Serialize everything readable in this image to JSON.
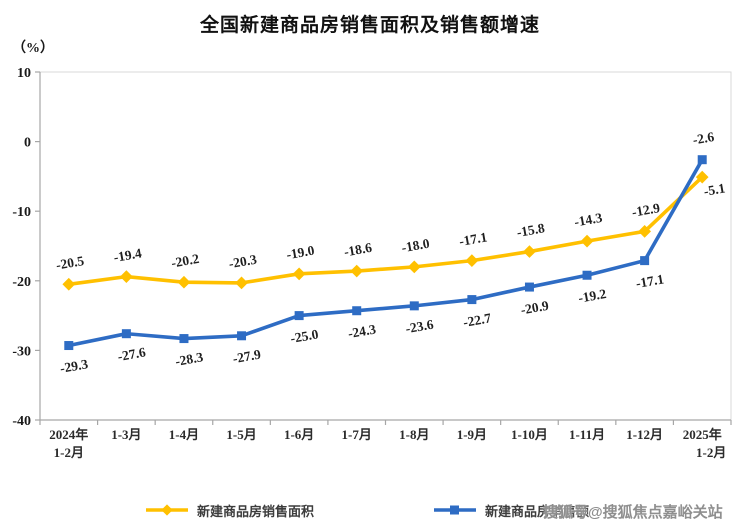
{
  "chart_data": {
    "type": "line",
    "title": "全国新建商品房销售面积及销售额增速",
    "unit_label": "（%）",
    "categories": [
      [
        "2024年",
        "1-2月"
      ],
      [
        "1-3月"
      ],
      [
        "1-4月"
      ],
      [
        "1-5月"
      ],
      [
        "1-6月"
      ],
      [
        "1-7月"
      ],
      [
        "1-8月"
      ],
      [
        "1-9月"
      ],
      [
        "1-10月"
      ],
      [
        "1-11月"
      ],
      [
        "1-12月"
      ],
      [
        "2025年",
        "1-2月"
      ]
    ],
    "series": [
      {
        "name": "新建商品房销售面积",
        "color": "#FFC000",
        "marker": "diamond",
        "values": [
          -20.5,
          -19.4,
          -20.2,
          -20.3,
          -19.0,
          -18.6,
          -18.0,
          -17.1,
          -15.8,
          -14.3,
          -12.9,
          -5.1
        ],
        "labels_placement": "above",
        "last_label_placement": "below-right"
      },
      {
        "name": "新建商品房销售额",
        "color": "#2E6CC4",
        "marker": "square",
        "values": [
          -29.3,
          -27.6,
          -28.3,
          -27.9,
          -25.0,
          -24.3,
          -23.6,
          -22.7,
          -20.9,
          -19.2,
          -17.1,
          -2.6
        ],
        "labels_placement": "below",
        "last_label_placement": "above"
      }
    ],
    "ylim": [
      -40,
      10
    ],
    "yticks": [
      10,
      0,
      -10,
      -20,
      -30,
      -40
    ],
    "grid": false,
    "legend_position": "bottom",
    "data_label_rotation_deg": -10
  },
  "watermark": "搜狐号@搜狐焦点嘉峪关站"
}
